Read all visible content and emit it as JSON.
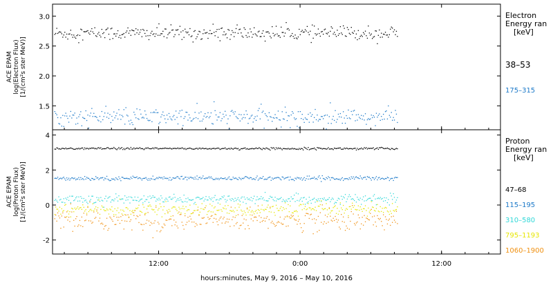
{
  "x_axis": {
    "title": "hours:minutes, May  9, 2016 – May 10, 2016",
    "ticks": [
      {
        "hour": 12,
        "label": "12:00"
      },
      {
        "hour": 24,
        "label": "0:00"
      },
      {
        "hour": 36,
        "label": "12:00"
      }
    ],
    "range_hours": [
      3.0,
      41.0
    ],
    "data_end_hour": 32.3
  },
  "chart_data": [
    {
      "type": "scatter",
      "panel": "electron",
      "ylabel": [
        "ACE EPAM",
        "log(Electron Flux)",
        "[1/(cm²s ster MeV)]"
      ],
      "ylim": [
        1.1,
        3.2
      ],
      "yticks": [
        1.5,
        2.0,
        2.5,
        3.0
      ],
      "ytick_labels": [
        "1.5",
        "2.0",
        "2.5",
        "3.0"
      ],
      "legend_title": [
        "Electron",
        "Energy ran",
        "[keV]"
      ],
      "series": [
        {
          "name": "38–53",
          "color": "#000000",
          "mean": 2.72,
          "spread": 0.06
        },
        {
          "name": "175–315",
          "color": "#1a78c8",
          "mean": 1.32,
          "spread": 0.07
        }
      ]
    },
    {
      "type": "scatter",
      "panel": "proton",
      "ylabel": [
        "ACE EPAM",
        "log(Proton Flux)",
        "[1/(cm²s ster MeV)]"
      ],
      "ylim": [
        -2.8,
        4.3
      ],
      "yticks": [
        -2,
        0,
        2,
        4
      ],
      "ytick_labels": [
        "-2",
        "0",
        "2",
        "4"
      ],
      "legend_title": [
        "Proton",
        "Energy ran",
        "[keV]"
      ],
      "series": [
        {
          "name": "47–68",
          "color": "#000000",
          "mean": 3.25,
          "spread": 0.03
        },
        {
          "name": "115–195",
          "color": "#1a78c8",
          "mean": 1.55,
          "spread": 0.06
        },
        {
          "name": "310–580",
          "color": "#30d8d8",
          "mean": 0.35,
          "spread": 0.12
        },
        {
          "name": "795–1193",
          "color": "#e6e600",
          "mean": -0.25,
          "spread": 0.18
        },
        {
          "name": "1060–1900",
          "color": "#f09010",
          "mean": -0.85,
          "spread": 0.3
        }
      ]
    }
  ]
}
